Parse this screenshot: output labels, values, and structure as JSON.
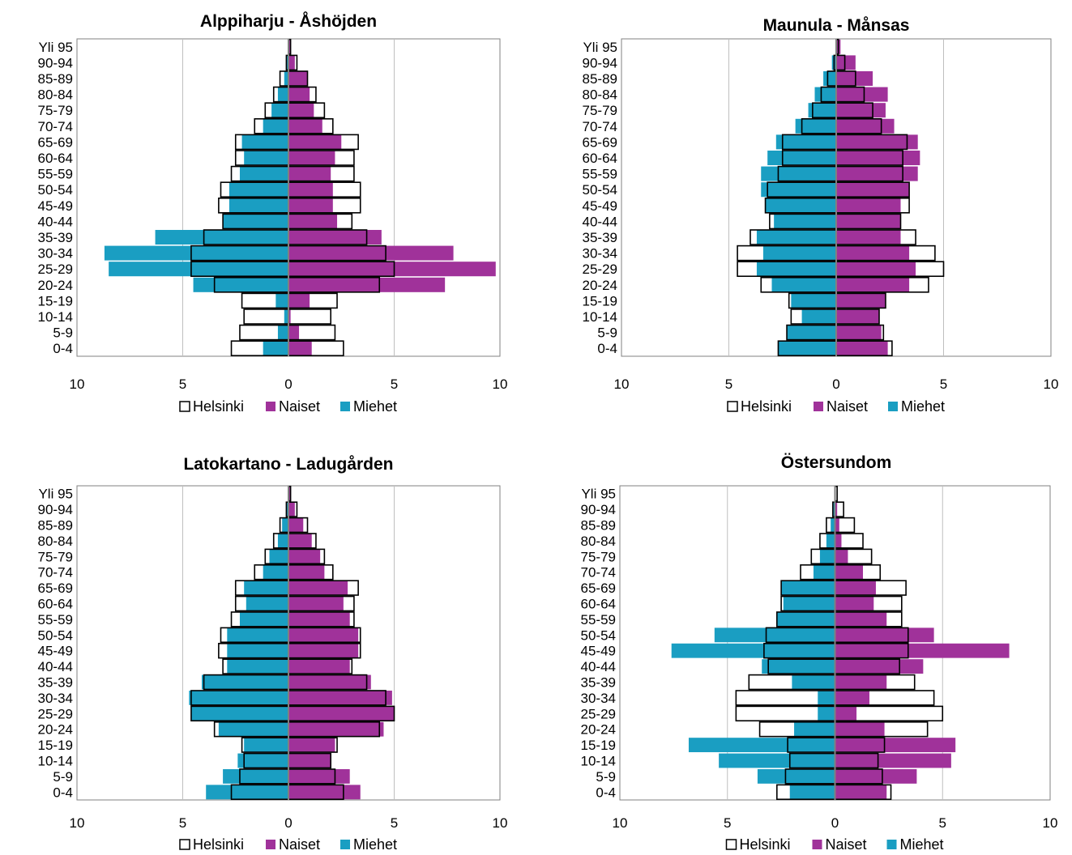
{
  "colors": {
    "naiset": "#a0329a",
    "miehet": "#1a9ec2",
    "helsinki_fill": "#ffffff",
    "helsinki_stroke": "#000000",
    "grid": "#bfbfbf",
    "axis": "#808080"
  },
  "chart_data": [
    {
      "type": "bar",
      "orientation": "horizontal",
      "title": "Alppiharju - Åshöjden",
      "categories": [
        "0-4",
        "5-9",
        "10-14",
        "15-19",
        "20-24",
        "25-29",
        "30-34",
        "35-39",
        "40-44",
        "45-49",
        "50-54",
        "55-59",
        "60-64",
        "65-69",
        "70-74",
        "75-79",
        "80-84",
        "85-89",
        "90-94",
        "Yli 95"
      ],
      "xlim": [
        -10,
        10
      ],
      "xticks": [
        "10",
        "5",
        "0",
        "5",
        "10"
      ],
      "series": [
        {
          "name": "Miehet",
          "values": [
            1.2,
            0.5,
            0.2,
            0.6,
            4.5,
            8.5,
            8.7,
            6.3,
            3.1,
            2.8,
            2.8,
            2.3,
            2.1,
            2.2,
            1.2,
            0.8,
            0.5,
            0.2,
            0.1,
            0.0
          ]
        },
        {
          "name": "Naiset",
          "values": [
            1.1,
            0.5,
            0.1,
            1.0,
            7.4,
            9.8,
            7.8,
            4.4,
            2.3,
            2.1,
            2.1,
            2.0,
            2.2,
            2.5,
            1.6,
            1.2,
            1.0,
            0.9,
            0.3,
            0.1
          ]
        },
        {
          "name": "Helsinki",
          "values_male": [
            2.7,
            2.3,
            2.1,
            2.2,
            3.5,
            4.6,
            4.6,
            4.0,
            3.1,
            3.3,
            3.2,
            2.7,
            2.5,
            2.5,
            1.6,
            1.1,
            0.7,
            0.4,
            0.1,
            0.0
          ],
          "values_female": [
            2.6,
            2.2,
            2.0,
            2.3,
            4.3,
            5.0,
            4.6,
            3.7,
            3.0,
            3.4,
            3.4,
            3.1,
            3.1,
            3.3,
            2.1,
            1.7,
            1.3,
            0.9,
            0.4,
            0.1
          ]
        }
      ],
      "legend": [
        "Helsinki",
        "Naiset",
        "Miehet"
      ],
      "legend_position": "bottom"
    },
    {
      "type": "bar",
      "orientation": "horizontal",
      "title": "Maunula - Månsas",
      "categories": [
        "0-4",
        "5-9",
        "10-14",
        "15-19",
        "20-24",
        "25-29",
        "30-34",
        "35-39",
        "40-44",
        "45-49",
        "50-54",
        "55-59",
        "60-64",
        "65-69",
        "70-74",
        "75-79",
        "80-84",
        "85-89",
        "90-94",
        "Yli 95"
      ],
      "xlim": [
        -10,
        10
      ],
      "xticks": [
        "10",
        "5",
        "0",
        "5",
        "10"
      ],
      "series": [
        {
          "name": "Miehet",
          "values": [
            2.7,
            2.3,
            1.6,
            2.1,
            3.0,
            3.7,
            3.4,
            3.7,
            2.9,
            3.3,
            3.5,
            3.5,
            3.2,
            2.8,
            1.9,
            1.3,
            1.0,
            0.6,
            0.2,
            0.0
          ]
        },
        {
          "name": "Naiset",
          "values": [
            2.4,
            2.1,
            2.0,
            2.3,
            3.4,
            3.7,
            3.4,
            3.0,
            3.0,
            3.0,
            3.4,
            3.8,
            3.9,
            3.8,
            2.7,
            2.3,
            2.4,
            1.7,
            0.9,
            0.2
          ]
        },
        {
          "name": "Helsinki",
          "values_male": [
            2.7,
            2.3,
            2.1,
            2.2,
            3.5,
            4.6,
            4.6,
            4.0,
            3.1,
            3.3,
            3.2,
            2.7,
            2.5,
            2.5,
            1.6,
            1.1,
            0.7,
            0.4,
            0.1,
            0.0
          ],
          "values_female": [
            2.6,
            2.2,
            2.0,
            2.3,
            4.3,
            5.0,
            4.6,
            3.7,
            3.0,
            3.4,
            3.4,
            3.1,
            3.1,
            3.3,
            2.1,
            1.7,
            1.3,
            0.9,
            0.4,
            0.1
          ]
        }
      ],
      "legend": [
        "Helsinki",
        "Naiset",
        "Miehet"
      ],
      "legend_position": "bottom"
    },
    {
      "type": "bar",
      "orientation": "horizontal",
      "title": "Latokartano - Ladugården",
      "categories": [
        "0-4",
        "5-9",
        "10-14",
        "15-19",
        "20-24",
        "25-29",
        "30-34",
        "35-39",
        "40-44",
        "45-49",
        "50-54",
        "55-59",
        "60-64",
        "65-69",
        "70-74",
        "75-79",
        "80-84",
        "85-89",
        "90-94",
        "Yli 95"
      ],
      "xlim": [
        -10,
        10
      ],
      "xticks": [
        "10",
        "5",
        "0",
        "5",
        "10"
      ],
      "series": [
        {
          "name": "Miehet",
          "values": [
            3.9,
            3.1,
            2.4,
            2.1,
            3.3,
            4.6,
            4.7,
            4.1,
            2.9,
            2.9,
            2.9,
            2.3,
            2.0,
            2.1,
            1.2,
            0.9,
            0.5,
            0.3,
            0.1,
            0.0
          ]
        },
        {
          "name": "Naiset",
          "values": [
            3.4,
            2.9,
            2.0,
            2.2,
            4.5,
            5.0,
            4.9,
            3.9,
            2.9,
            3.3,
            3.3,
            2.9,
            2.6,
            2.8,
            1.7,
            1.5,
            1.1,
            0.7,
            0.3,
            0.1
          ]
        },
        {
          "name": "Helsinki",
          "values_male": [
            2.7,
            2.3,
            2.1,
            2.2,
            3.5,
            4.6,
            4.6,
            4.0,
            3.1,
            3.3,
            3.2,
            2.7,
            2.5,
            2.5,
            1.6,
            1.1,
            0.7,
            0.4,
            0.1,
            0.0
          ],
          "values_female": [
            2.6,
            2.2,
            2.0,
            2.3,
            4.3,
            5.0,
            4.6,
            3.7,
            3.0,
            3.4,
            3.4,
            3.1,
            3.1,
            3.3,
            2.1,
            1.7,
            1.3,
            0.9,
            0.4,
            0.1
          ]
        }
      ],
      "legend": [
        "Helsinki",
        "Naiset",
        "Miehet"
      ],
      "legend_position": "bottom"
    },
    {
      "type": "bar",
      "orientation": "horizontal",
      "title": "Östersundom",
      "categories": [
        "0-4",
        "5-9",
        "10-14",
        "15-19",
        "20-24",
        "25-29",
        "30-34",
        "35-39",
        "40-44",
        "45-49",
        "50-54",
        "55-59",
        "60-64",
        "65-69",
        "70-74",
        "75-79",
        "80-84",
        "85-89",
        "90-94",
        "Yli 95"
      ],
      "xlim": [
        -10,
        10
      ],
      "xticks": [
        "10",
        "5",
        "0",
        "5",
        "10"
      ],
      "series": [
        {
          "name": "Miehet",
          "values": [
            2.1,
            3.6,
            5.4,
            6.8,
            1.9,
            0.8,
            0.8,
            2.0,
            3.4,
            7.6,
            5.6,
            2.7,
            2.4,
            2.5,
            1.0,
            0.7,
            0.4,
            0.2,
            0.1,
            0.0
          ]
        },
        {
          "name": "Naiset",
          "values": [
            2.4,
            3.8,
            5.4,
            5.6,
            2.3,
            1.0,
            1.6,
            2.4,
            4.1,
            8.1,
            4.6,
            2.4,
            1.8,
            1.9,
            1.3,
            0.6,
            0.3,
            0.2,
            0.1,
            0.0
          ]
        },
        {
          "name": "Helsinki",
          "values_male": [
            2.7,
            2.3,
            2.1,
            2.2,
            3.5,
            4.6,
            4.6,
            4.0,
            3.1,
            3.3,
            3.2,
            2.7,
            2.5,
            2.5,
            1.6,
            1.1,
            0.7,
            0.4,
            0.1,
            0.0
          ],
          "values_female": [
            2.6,
            2.2,
            2.0,
            2.3,
            4.3,
            5.0,
            4.6,
            3.7,
            3.0,
            3.4,
            3.4,
            3.1,
            3.1,
            3.3,
            2.1,
            1.7,
            1.3,
            0.9,
            0.4,
            0.1
          ]
        }
      ],
      "legend": [
        "Helsinki",
        "Naiset",
        "Miehet"
      ],
      "legend_position": "bottom"
    }
  ]
}
